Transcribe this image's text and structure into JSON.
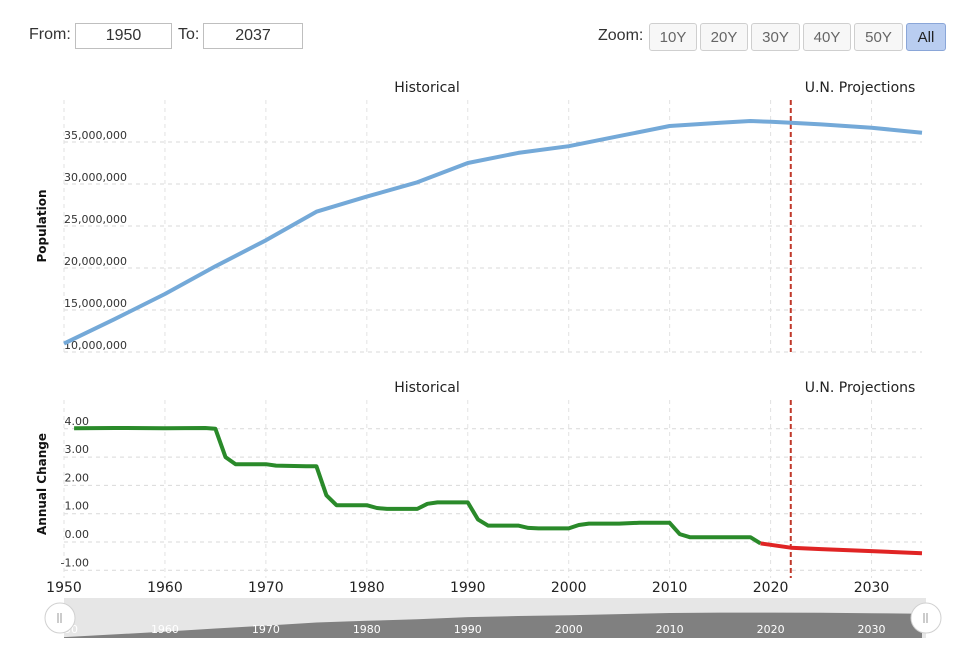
{
  "range": {
    "from_label": "From:",
    "from_value": "1950",
    "to_label": "To:",
    "to_value": "2037"
  },
  "zoom": {
    "label": "Zoom:",
    "buttons": [
      "10Y",
      "20Y",
      "30Y",
      "40Y",
      "50Y",
      "All"
    ],
    "active": "All"
  },
  "colors": {
    "population_line": "#74a9d8",
    "historical_change": "#2a8a2a",
    "projected_change": "#e02424",
    "projection_divider": "#c0392b",
    "navigator_fill": "#808080"
  },
  "chart_data": [
    {
      "type": "line",
      "section_labels": [
        "Historical",
        "U.N. Projections"
      ],
      "ylabel": "Population",
      "xlim": [
        1950,
        2035
      ],
      "ylim": [
        10000000,
        40000000
      ],
      "yticks": [
        10000000,
        15000000,
        20000000,
        25000000,
        30000000,
        35000000
      ],
      "ytick_labels": [
        "10,000,000",
        "15,000,000",
        "20,000,000",
        "25,000,000",
        "30,000,000",
        "35,000,000"
      ],
      "projection_start": 2022,
      "grid": true,
      "series": [
        {
          "x": [
            1950,
            1955,
            1960,
            1965,
            1970,
            1975,
            1980,
            1985,
            1990,
            1995,
            2000,
            2005,
            2010,
            2015,
            2018,
            2020,
            2022,
            2025,
            2030,
            2035
          ],
          "values": [
            11000000,
            13900000,
            16900000,
            20200000,
            23300000,
            26700000,
            28500000,
            30200000,
            32500000,
            33700000,
            34500000,
            35700000,
            36900000,
            37300000,
            37500000,
            37400000,
            37300000,
            37100000,
            36700000,
            36100000
          ]
        }
      ]
    },
    {
      "type": "line",
      "section_labels": [
        "Historical",
        "U.N. Projections"
      ],
      "ylabel": "Annual Change",
      "xlim": [
        1950,
        2035
      ],
      "ylim": [
        -1.5,
        4.8
      ],
      "yticks": [
        -1,
        0,
        1,
        2,
        3,
        4
      ],
      "ytick_labels": [
        "-1.00",
        "0.00",
        "1.00",
        "2.00",
        "3.00",
        "4.00"
      ],
      "xticks": [
        1950,
        1960,
        1970,
        1980,
        1990,
        2000,
        2010,
        2020,
        2030
      ],
      "projection_start": 2022,
      "grid": true,
      "series": [
        {
          "segment": "historical",
          "x": [
            1951,
            1955,
            1960,
            1964,
            1965,
            1966,
            1967,
            1969,
            1970,
            1971,
            1974,
            1975,
            1976,
            1977,
            1980,
            1981,
            1982,
            1985,
            1986,
            1987,
            1990,
            1991,
            1992,
            1995,
            1996,
            1997,
            2000,
            2001,
            2002,
            2005,
            2007,
            2010,
            2011,
            2012,
            2015,
            2018,
            2019
          ],
          "values": [
            4.02,
            4.03,
            4.02,
            4.03,
            4.0,
            3.0,
            2.75,
            2.75,
            2.75,
            2.7,
            2.68,
            2.68,
            1.65,
            1.3,
            1.3,
            1.2,
            1.17,
            1.17,
            1.35,
            1.4,
            1.4,
            0.8,
            0.58,
            0.58,
            0.5,
            0.48,
            0.48,
            0.6,
            0.65,
            0.65,
            0.68,
            0.68,
            0.28,
            0.17,
            0.17,
            0.17,
            -0.05
          ]
        },
        {
          "segment": "projection",
          "x": [
            2019,
            2020,
            2022,
            2025,
            2030,
            2035
          ],
          "values": [
            -0.05,
            -0.1,
            -0.2,
            -0.25,
            -0.32,
            -0.4
          ]
        }
      ]
    }
  ],
  "navigator": {
    "x": [
      1950,
      1955,
      1960,
      1965,
      1970,
      1975,
      1980,
      1985,
      1990,
      1995,
      2000,
      2005,
      2010,
      2015,
      2020,
      2025,
      2030,
      2035
    ],
    "values": [
      11000000,
      13900000,
      16900000,
      20200000,
      23300000,
      26700000,
      28500000,
      30200000,
      32500000,
      33700000,
      34500000,
      35700000,
      36900000,
      37300000,
      37400000,
      37100000,
      36700000,
      36100000
    ],
    "tick_labels": [
      "1950",
      "1960",
      "1970",
      "1980",
      "1990",
      "2000",
      "2010",
      "2020",
      "2030"
    ]
  }
}
